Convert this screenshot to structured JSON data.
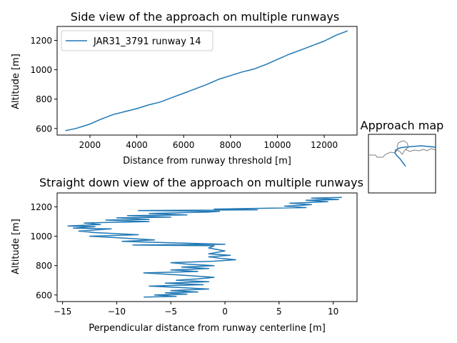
{
  "chart_data": [
    {
      "type": "line",
      "title": "Side view of the approach on multiple runways",
      "xlabel": "Distance from runway threshold [m]",
      "ylabel": "Altitude [m]",
      "xlim": [
        600,
        13400
      ],
      "ylim": [
        555,
        1295
      ],
      "xticks": [
        2000,
        4000,
        6000,
        8000,
        10000,
        12000
      ],
      "yticks": [
        600,
        800,
        1000,
        1200
      ],
      "grid": false,
      "legend_position": "upper-left",
      "series": [
        {
          "name": "JAR31_3791 runway 14",
          "color": "#1f77b4",
          "x": [
            950,
            1400,
            2000,
            2500,
            3000,
            3500,
            4000,
            4500,
            5000,
            5500,
            6000,
            6500,
            7000,
            7500,
            8000,
            8500,
            9000,
            9500,
            10000,
            10500,
            11000,
            11500,
            12000,
            12500,
            13000
          ],
          "y": [
            585,
            600,
            630,
            665,
            695,
            715,
            735,
            760,
            780,
            810,
            840,
            870,
            900,
            935,
            960,
            985,
            1005,
            1035,
            1070,
            1105,
            1135,
            1165,
            1195,
            1235,
            1265
          ]
        }
      ]
    },
    {
      "type": "line",
      "title": "Straight down view of the approach on multiple runways",
      "xlabel": "Perpendicular distance from runway centerline [m]",
      "ylabel": "Altitude [m]",
      "xlim": [
        -15.5,
        12.2
      ],
      "ylim": [
        555,
        1295
      ],
      "xticks": [
        -15,
        -10,
        -5,
        0,
        5,
        10
      ],
      "yticks": [
        600,
        800,
        1000,
        1200
      ],
      "grid": false,
      "series": [
        {
          "color": "#1f77b4",
          "x": [
            -7.5,
            -4.5,
            -6.5,
            -3.5,
            -5.5,
            -2.5,
            -5.0,
            -1.5,
            -4.0,
            -7.0,
            -2.0,
            -5.5,
            -1.5,
            -4.5,
            -2.5,
            -1.0,
            -4.0,
            -7.5,
            -2.5,
            -5.0,
            -1.5,
            -4.0,
            -1.0,
            -3.5,
            -5.0,
            -1.0,
            1.0,
            -0.5,
            -1.5,
            0.5,
            -1.5,
            0.0,
            -1.5,
            -1.0,
            -8.5,
            0.0,
            -9.5,
            -6.5,
            -10.0,
            -12.5,
            -8.0,
            -12.0,
            -13.5,
            -10.5,
            -14.0,
            -12.0,
            -14.5,
            -11.5,
            -13.0,
            -10.5,
            -7.0,
            -11.0,
            -7.0,
            -10.0,
            -5.0,
            -9.0,
            -3.5,
            -7.0,
            -1.5,
            -0.5,
            -8.0,
            3.0,
            -1.0,
            7.5,
            5.5,
            8.0,
            6.0,
            9.5,
            7.5,
            10.5,
            8.0,
            10.8
          ],
          "y": [
            585,
            590,
            600,
            605,
            615,
            620,
            630,
            640,
            650,
            660,
            670,
            680,
            690,
            700,
            710,
            720,
            735,
            750,
            760,
            770,
            780,
            790,
            800,
            810,
            820,
            830,
            840,
            850,
            860,
            870,
            880,
            900,
            920,
            935,
            940,
            945,
            965,
            975,
            990,
            1000,
            1010,
            1025,
            1035,
            1050,
            1055,
            1065,
            1070,
            1080,
            1090,
            1095,
            1100,
            1110,
            1115,
            1125,
            1130,
            1140,
            1145,
            1155,
            1165,
            1170,
            1175,
            1180,
            1185,
            1195,
            1205,
            1215,
            1225,
            1235,
            1245,
            1250,
            1260,
            1265
          ]
        }
      ]
    },
    {
      "type": "line",
      "title": "Approach map",
      "grid": false,
      "series": [
        {
          "color": "#808080"
        },
        {
          "color": "#1f77b4"
        }
      ]
    }
  ]
}
